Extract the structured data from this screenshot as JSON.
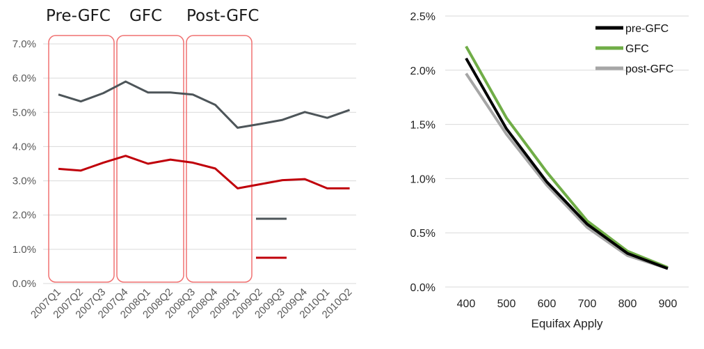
{
  "left_colors": {
    "series1": "#4d5559",
    "series2": "#c0000a",
    "period_box": "#f07070",
    "grid": "#d9d9d9"
  },
  "right_colors": {
    "pre": "#000000",
    "gfc": "#70ad47",
    "post": "#a6a6a6",
    "grid": "#d9d9d9"
  },
  "chart_data": [
    {
      "type": "line",
      "categories": [
        "2007Q1",
        "2007Q2",
        "2007Q3",
        "2007Q4",
        "2008Q1",
        "2008Q2",
        "2008Q3",
        "2008Q4",
        "2009Q1",
        "2009Q2",
        "2009Q3",
        "2009Q4",
        "2010Q1",
        "2010Q2"
      ],
      "ylim": [
        0,
        7
      ],
      "y_ticks": [
        "0.0%",
        "1.0%",
        "2.0%",
        "3.0%",
        "4.0%",
        "5.0%",
        "6.0%",
        "7.0%"
      ],
      "grid": true,
      "series": [
        {
          "values": [
            5.52,
            5.32,
            5.56,
            5.9,
            5.58,
            5.58,
            5.52,
            5.22,
            4.55,
            4.66,
            4.78,
            5.01,
            4.84,
            5.07
          ]
        },
        {
          "values": [
            3.35,
            3.3,
            3.53,
            3.73,
            3.5,
            3.62,
            3.53,
            3.36,
            2.78,
            2.9,
            3.02,
            3.05,
            2.78,
            2.78
          ]
        }
      ],
      "period_labels": [
        "Pre-GFC",
        "GFC",
        "Post-GFC"
      ]
    },
    {
      "type": "line",
      "x": [
        400,
        500,
        600,
        700,
        800,
        900
      ],
      "xlabel": "Equifax Apply",
      "ylim": [
        0,
        0.025
      ],
      "y_ticks": [
        "0.0%",
        "0.5%",
        "1.0%",
        "1.5%",
        "2.0%",
        "2.5%"
      ],
      "grid": true,
      "legend": "top-right",
      "series": [
        {
          "name": "pre-GFC",
          "values": [
            0.0211,
            0.0146,
            0.0097,
            0.0058,
            0.0031,
            0.0017
          ]
        },
        {
          "name": "GFC",
          "values": [
            0.0222,
            0.0156,
            0.0106,
            0.0061,
            0.0033,
            0.0018
          ]
        },
        {
          "name": "post-GFC",
          "values": [
            0.0197,
            0.0141,
            0.0094,
            0.0055,
            0.0029,
            0.0017
          ]
        }
      ]
    }
  ]
}
